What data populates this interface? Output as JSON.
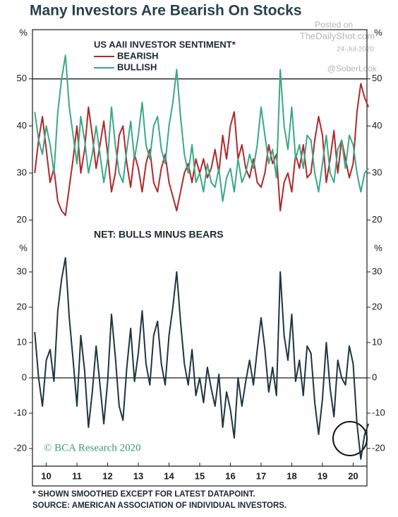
{
  "title": "Many Investors Are Bearish On Stocks",
  "watermark": {
    "posted": "Posted on",
    "site": "TheDailyShot.com",
    "date": "24-Jul-2020",
    "handle": "@SoberLook"
  },
  "footnotes": [
    "* SHOWN SMOOTHED EXCEPT FOR LATEST DATAPOINT.",
    "SOURCE: AMERICAN ASSOCIATION OF INDIVIDUAL INVESTORS."
  ],
  "chart_data": [
    {
      "type": "line",
      "subtitle": "US AAII INVESTOR SENTIMENT*",
      "y_unit": "%",
      "xlim": [
        2009.55,
        2020.45
      ],
      "ylim": [
        15,
        60
      ],
      "yticks": [
        20,
        30,
        40,
        50
      ],
      "reference_line": 50,
      "x": [
        2009.625,
        2009.75,
        2009.875,
        2010,
        2010.125,
        2010.25,
        2010.375,
        2010.5,
        2010.625,
        2010.75,
        2010.875,
        2011,
        2011.125,
        2011.25,
        2011.375,
        2011.5,
        2011.625,
        2011.75,
        2011.875,
        2012,
        2012.125,
        2012.25,
        2012.375,
        2012.5,
        2012.625,
        2012.75,
        2012.875,
        2013,
        2013.125,
        2013.25,
        2013.375,
        2013.5,
        2013.625,
        2013.75,
        2013.875,
        2014,
        2014.125,
        2014.25,
        2014.375,
        2014.5,
        2014.625,
        2014.75,
        2014.875,
        2015,
        2015.125,
        2015.25,
        2015.375,
        2015.5,
        2015.625,
        2015.75,
        2015.875,
        2016,
        2016.125,
        2016.25,
        2016.375,
        2016.5,
        2016.625,
        2016.75,
        2016.875,
        2017,
        2017.125,
        2017.25,
        2017.375,
        2017.5,
        2017.625,
        2017.75,
        2017.875,
        2018,
        2018.125,
        2018.25,
        2018.375,
        2018.5,
        2018.625,
        2018.75,
        2018.875,
        2019,
        2019.125,
        2019.25,
        2019.375,
        2019.5,
        2019.625,
        2019.75,
        2019.875,
        2020,
        2020.125,
        2020.25,
        2020.375,
        2020.5
      ],
      "series": [
        {
          "name": "BEARISH",
          "color": "#b0282a",
          "values": [
            30,
            37,
            42,
            35,
            28,
            31,
            24,
            22,
            21,
            27,
            33,
            40,
            30,
            35,
            44,
            38,
            31,
            36,
            41,
            34,
            26,
            30,
            38,
            40,
            32,
            27,
            34,
            31,
            26,
            32,
            35,
            28,
            26,
            31,
            34,
            28,
            25,
            22,
            26,
            30,
            32,
            28,
            33,
            30,
            33,
            29,
            31,
            35,
            30,
            38,
            33,
            40,
            43,
            33,
            36,
            31,
            29,
            33,
            28,
            27,
            30,
            36,
            32,
            34,
            22,
            28,
            30,
            26,
            34,
            31,
            36,
            29,
            30,
            37,
            42,
            38,
            28,
            33,
            39,
            30,
            37,
            33,
            29,
            32,
            43,
            49,
            46,
            44
          ]
        },
        {
          "name": "BULLISH",
          "color": "#3aa886",
          "values": [
            43,
            37,
            34,
            40,
            36,
            30,
            43,
            50,
            55,
            44,
            38,
            32,
            42,
            37,
            30,
            34,
            40,
            34,
            28,
            33,
            44,
            36,
            30,
            28,
            35,
            41,
            33,
            38,
            45,
            36,
            33,
            40,
            42,
            35,
            32,
            40,
            45,
            52,
            42,
            34,
            30,
            36,
            28,
            30,
            26,
            32,
            28,
            27,
            31,
            24,
            29,
            31,
            26,
            33,
            28,
            30,
            34,
            31,
            36,
            44,
            38,
            32,
            35,
            29,
            52,
            40,
            35,
            44,
            33,
            36,
            31,
            38,
            37,
            30,
            26,
            32,
            38,
            30,
            28,
            35,
            37,
            31,
            38,
            36,
            30,
            26,
            30,
            31
          ]
        }
      ]
    },
    {
      "type": "line",
      "title": "NET: BULLS MINUS BEARS",
      "y_unit": "%",
      "annotation": "© BCA Research 2020",
      "xlim": [
        2009.55,
        2020.45
      ],
      "ylim": [
        -25,
        37
      ],
      "yticks": [
        -20,
        -10,
        0,
        10,
        20,
        30
      ],
      "reference_line": 0,
      "xticks": [
        {
          "value": 2010,
          "label": "10"
        },
        {
          "value": 2011,
          "label": "11"
        },
        {
          "value": 2012,
          "label": "12"
        },
        {
          "value": 2013,
          "label": "13"
        },
        {
          "value": 2014,
          "label": "14"
        },
        {
          "value": 2015,
          "label": "15"
        },
        {
          "value": 2016,
          "label": "16"
        },
        {
          "value": 2017,
          "label": "17"
        },
        {
          "value": 2018,
          "label": "18"
        },
        {
          "value": 2019,
          "label": "19"
        },
        {
          "value": 2020,
          "label": "20"
        }
      ],
      "x": [
        2009.625,
        2009.75,
        2009.875,
        2010,
        2010.125,
        2010.25,
        2010.375,
        2010.5,
        2010.625,
        2010.75,
        2010.875,
        2011,
        2011.125,
        2011.25,
        2011.375,
        2011.5,
        2011.625,
        2011.75,
        2011.875,
        2012,
        2012.125,
        2012.25,
        2012.375,
        2012.5,
        2012.625,
        2012.75,
        2012.875,
        2013,
        2013.125,
        2013.25,
        2013.375,
        2013.5,
        2013.625,
        2013.75,
        2013.875,
        2014,
        2014.125,
        2014.25,
        2014.375,
        2014.5,
        2014.625,
        2014.75,
        2014.875,
        2015,
        2015.125,
        2015.25,
        2015.375,
        2015.5,
        2015.625,
        2015.75,
        2015.875,
        2016,
        2016.125,
        2016.25,
        2016.375,
        2016.5,
        2016.625,
        2016.75,
        2016.875,
        2017,
        2017.125,
        2017.25,
        2017.375,
        2017.5,
        2017.625,
        2017.75,
        2017.875,
        2018,
        2018.125,
        2018.25,
        2018.375,
        2018.5,
        2018.625,
        2018.75,
        2018.875,
        2019,
        2019.125,
        2019.25,
        2019.375,
        2019.5,
        2019.625,
        2019.75,
        2019.875,
        2020,
        2020.125,
        2020.25,
        2020.375,
        2020.5
      ],
      "series": [
        {
          "name": "NET",
          "color": "#1d3540",
          "values": [
            13,
            0,
            -8,
            5,
            8,
            -1,
            19,
            28,
            34,
            17,
            5,
            -8,
            12,
            2,
            -14,
            -4,
            9,
            -2,
            -13,
            -1,
            18,
            6,
            -8,
            -12,
            3,
            14,
            -1,
            7,
            19,
            4,
            -2,
            12,
            16,
            4,
            -2,
            12,
            20,
            30,
            16,
            4,
            -2,
            8,
            -5,
            0,
            -7,
            3,
            -3,
            -8,
            1,
            -14,
            -4,
            -9,
            -17,
            0,
            -8,
            -1,
            5,
            -2,
            8,
            17,
            8,
            -4,
            3,
            -5,
            30,
            12,
            5,
            18,
            -1,
            5,
            -5,
            9,
            7,
            -7,
            -16,
            -6,
            10,
            -3,
            -11,
            5,
            0,
            -2,
            9,
            4,
            -13,
            -23,
            -16,
            -13
          ]
        }
      ]
    }
  ]
}
